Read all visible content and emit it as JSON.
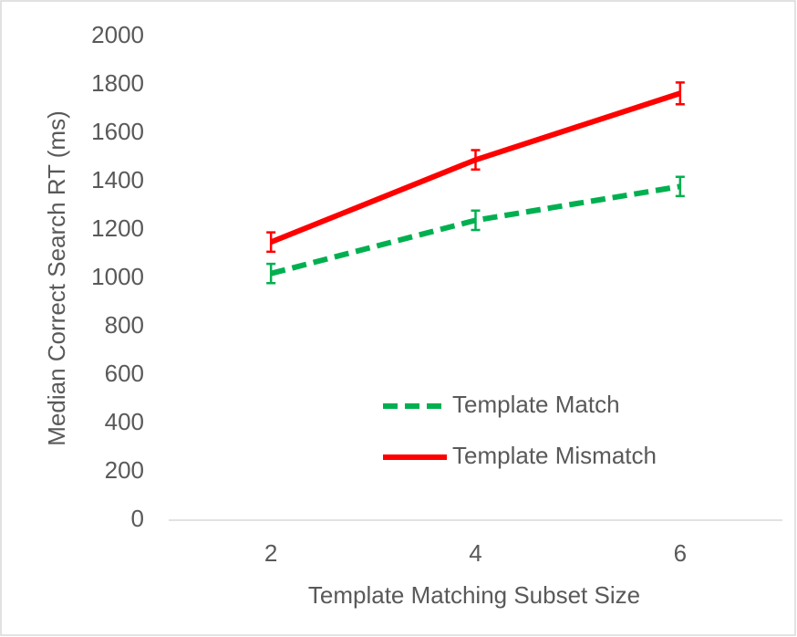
{
  "chart_data": {
    "type": "line",
    "xlabel": "Template Matching Subset Size",
    "ylabel": "Median Correct Search RT (ms)",
    "categories": [
      "2",
      "4",
      "6"
    ],
    "series": [
      {
        "name": "Template Match",
        "color": "#00b050",
        "line_style": "dashed",
        "values": [
          1020,
          1240,
          1380
        ],
        "errors": [
          40,
          40,
          40
        ]
      },
      {
        "name": "Template Mismatch",
        "color": "#ff0000",
        "line_style": "solid",
        "values": [
          1150,
          1490,
          1765
        ],
        "errors": [
          40,
          40,
          45
        ]
      }
    ],
    "ylim": [
      0,
      2000
    ],
    "yticks": [
      0,
      200,
      400,
      600,
      800,
      1000,
      1200,
      1400,
      1600,
      1800,
      2000
    ],
    "grid": false,
    "legend": "lower right"
  }
}
